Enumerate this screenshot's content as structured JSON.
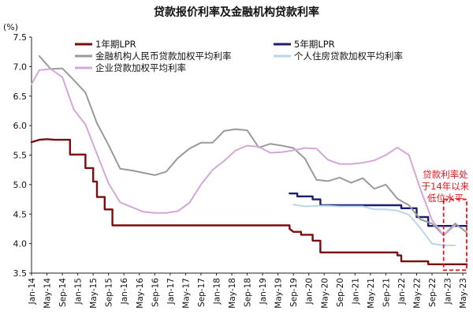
{
  "chart_data": {
    "type": "line",
    "title": "贷款报价利率及金融机构贷款利率",
    "unit_label": "(%)",
    "ylim": [
      3.5,
      7.5
    ],
    "y_ticks": [
      "3.5",
      "4.0",
      "4.5",
      "5.0",
      "5.5",
      "6.0",
      "6.5",
      "7.0",
      "7.5"
    ],
    "x_ticks": [
      "Jan-14",
      "May-14",
      "Sep-14",
      "Jan-15",
      "May-15",
      "Sep-15",
      "Jan-16",
      "May-16",
      "Sep-16",
      "Jan-17",
      "May-17",
      "Sep-17",
      "Jan-18",
      "May-18",
      "Sep-18",
      "Jan-19",
      "May-19",
      "Sep-19",
      "Jan-20",
      "May-20",
      "Sep-20",
      "Jan-21",
      "May-21",
      "Sep-21",
      "Jan-22",
      "May-22",
      "Sep-22",
      "Jan-23",
      "May-23"
    ],
    "x_range": [
      "2014-01",
      "2023-06"
    ],
    "grid": false,
    "legend_position": "top",
    "annotation": {
      "lines": [
        "贷款利率处",
        "于14年以来",
        "低位水平"
      ],
      "color": "#e8151b",
      "box_x_range": [
        "2022-12",
        "2023-06"
      ],
      "box_y_range": [
        3.55,
        4.75
      ]
    },
    "series": [
      {
        "name": "1年期LPR",
        "color": "#7a0d0d",
        "step": true,
        "points": [
          [
            "2014-01",
            5.72
          ],
          [
            "2014-03",
            5.76
          ],
          [
            "2014-05",
            5.77
          ],
          [
            "2014-07",
            5.76
          ],
          [
            "2014-11",
            5.76
          ],
          [
            "2014-11",
            5.51
          ],
          [
            "2015-03",
            5.51
          ],
          [
            "2015-03",
            5.28
          ],
          [
            "2015-05",
            5.28
          ],
          [
            "2015-05",
            5.05
          ],
          [
            "2015-06",
            5.05
          ],
          [
            "2015-06",
            4.79
          ],
          [
            "2015-08",
            4.79
          ],
          [
            "2015-08",
            4.58
          ],
          [
            "2015-10",
            4.58
          ],
          [
            "2015-10",
            4.31
          ],
          [
            "2019-08",
            4.31
          ],
          [
            "2019-08",
            4.25
          ],
          [
            "2019-09",
            4.2
          ],
          [
            "2019-11",
            4.2
          ],
          [
            "2019-11",
            4.15
          ],
          [
            "2020-02",
            4.15
          ],
          [
            "2020-02",
            4.05
          ],
          [
            "2020-04",
            4.05
          ],
          [
            "2020-04",
            3.85
          ],
          [
            "2021-12",
            3.85
          ],
          [
            "2021-12",
            3.8
          ],
          [
            "2022-01",
            3.8
          ],
          [
            "2022-01",
            3.7
          ],
          [
            "2022-08",
            3.7
          ],
          [
            "2022-08",
            3.65
          ],
          [
            "2023-06",
            3.65
          ]
        ]
      },
      {
        "name": "5年期LPR",
        "color": "#1b1f6e",
        "step": true,
        "points": [
          [
            "2019-08",
            4.85
          ],
          [
            "2019-10",
            4.85
          ],
          [
            "2019-10",
            4.8
          ],
          [
            "2020-02",
            4.8
          ],
          [
            "2020-02",
            4.75
          ],
          [
            "2020-04",
            4.75
          ],
          [
            "2020-04",
            4.65
          ],
          [
            "2022-01",
            4.65
          ],
          [
            "2022-01",
            4.6
          ],
          [
            "2022-05",
            4.6
          ],
          [
            "2022-05",
            4.45
          ],
          [
            "2022-08",
            4.45
          ],
          [
            "2022-08",
            4.3
          ],
          [
            "2023-06",
            4.3
          ]
        ]
      },
      {
        "name": "金融机构人民币贷款加权平均利率",
        "color": "#9a9a9a",
        "step": false,
        "points": [
          [
            "2014-03",
            7.18
          ],
          [
            "2014-06",
            6.96
          ],
          [
            "2014-09",
            6.97
          ],
          [
            "2014-12",
            6.77
          ],
          [
            "2015-03",
            6.56
          ],
          [
            "2015-06",
            6.04
          ],
          [
            "2015-09",
            5.67
          ],
          [
            "2015-12",
            5.27
          ],
          [
            "2016-03",
            5.24
          ],
          [
            "2016-06",
            5.2
          ],
          [
            "2016-09",
            5.16
          ],
          [
            "2016-12",
            5.22
          ],
          [
            "2017-03",
            5.45
          ],
          [
            "2017-06",
            5.61
          ],
          [
            "2017-09",
            5.71
          ],
          [
            "2017-12",
            5.71
          ],
          [
            "2018-03",
            5.91
          ],
          [
            "2018-06",
            5.94
          ],
          [
            "2018-09",
            5.92
          ],
          [
            "2018-12",
            5.63
          ],
          [
            "2019-03",
            5.69
          ],
          [
            "2019-06",
            5.66
          ],
          [
            "2019-09",
            5.62
          ],
          [
            "2019-12",
            5.44
          ],
          [
            "2020-03",
            5.08
          ],
          [
            "2020-06",
            5.06
          ],
          [
            "2020-09",
            5.12
          ],
          [
            "2020-12",
            5.03
          ],
          [
            "2021-03",
            5.11
          ],
          [
            "2021-06",
            4.93
          ],
          [
            "2021-09",
            5.0
          ],
          [
            "2021-12",
            4.76
          ],
          [
            "2022-03",
            4.65
          ],
          [
            "2022-06",
            4.41
          ],
          [
            "2022-09",
            4.34
          ],
          [
            "2022-12",
            4.14
          ],
          [
            "2023-03",
            4.34
          ],
          [
            "2023-06",
            4.19
          ]
        ]
      },
      {
        "name": "个人住房贷款加权平均利率",
        "color": "#b9d6ec",
        "step": false,
        "points": [
          [
            "2019-09",
            4.66
          ],
          [
            "2019-12",
            4.63
          ],
          [
            "2020-03",
            4.64
          ],
          [
            "2020-06",
            4.64
          ],
          [
            "2020-09",
            4.63
          ],
          [
            "2020-12",
            4.63
          ],
          [
            "2021-03",
            4.63
          ],
          [
            "2021-06",
            4.58
          ],
          [
            "2021-09",
            4.58
          ],
          [
            "2021-12",
            4.56
          ],
          [
            "2022-03",
            4.49
          ],
          [
            "2022-06",
            4.26
          ],
          [
            "2022-09",
            4.0
          ],
          [
            "2022-12",
            3.97
          ],
          [
            "2023-03",
            3.97
          ]
        ]
      },
      {
        "name": "企业贷款加权平均利率",
        "color": "#d5a7d8",
        "step": false,
        "points": [
          [
            "2014-01",
            6.7
          ],
          [
            "2014-03",
            6.94
          ],
          [
            "2014-06",
            6.96
          ],
          [
            "2014-09",
            6.82
          ],
          [
            "2014-12",
            6.27
          ],
          [
            "2015-03",
            6.02
          ],
          [
            "2015-06",
            5.52
          ],
          [
            "2015-09",
            5.02
          ],
          [
            "2015-12",
            4.7
          ],
          [
            "2016-03",
            4.62
          ],
          [
            "2016-06",
            4.54
          ],
          [
            "2016-09",
            4.52
          ],
          [
            "2016-12",
            4.52
          ],
          [
            "2017-03",
            4.55
          ],
          [
            "2017-06",
            4.69
          ],
          [
            "2017-09",
            5.0
          ],
          [
            "2017-12",
            5.25
          ],
          [
            "2018-03",
            5.4
          ],
          [
            "2018-06",
            5.58
          ],
          [
            "2018-09",
            5.66
          ],
          [
            "2018-12",
            5.64
          ],
          [
            "2019-03",
            5.54
          ],
          [
            "2019-06",
            5.55
          ],
          [
            "2019-09",
            5.58
          ],
          [
            "2019-12",
            5.62
          ],
          [
            "2020-03",
            5.61
          ],
          [
            "2020-06",
            5.42
          ],
          [
            "2020-09",
            5.35
          ],
          [
            "2020-12",
            5.35
          ],
          [
            "2021-03",
            5.37
          ],
          [
            "2021-06",
            5.41
          ],
          [
            "2021-09",
            5.5
          ],
          [
            "2021-12",
            5.63
          ],
          [
            "2022-03",
            5.5
          ],
          [
            "2022-06",
            4.92
          ],
          [
            "2022-09",
            4.4
          ],
          [
            "2022-12",
            4.14
          ],
          [
            "2023-03",
            4.31
          ]
        ]
      }
    ]
  }
}
